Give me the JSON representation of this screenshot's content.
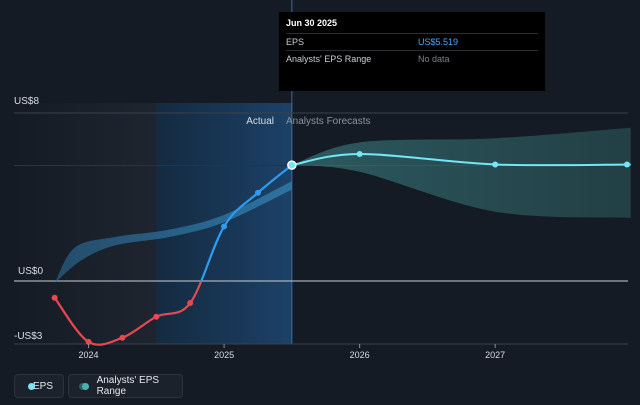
{
  "chart_data": {
    "type": "line",
    "y_axis": {
      "top_label": "US$8",
      "zero_label": "US$0",
      "bottom_label": "-US$3",
      "ylim": [
        -3,
        8
      ]
    },
    "x_ticks": [
      "2024",
      "2025",
      "2026",
      "2027"
    ],
    "xlim": [
      2023.45,
      2027.98
    ],
    "sections": {
      "actual_label": "Actual",
      "forecast_label": "Analysts Forecasts",
      "highlight_start": 2024.5,
      "divider": 2025.5
    },
    "series": [
      {
        "name": "EPS",
        "kind": "actual",
        "points": [
          {
            "x": 2023.75,
            "y": -0.8
          },
          {
            "x": 2024.0,
            "y": -2.9
          },
          {
            "x": 2024.25,
            "y": -2.7
          },
          {
            "x": 2024.5,
            "y": -1.7
          },
          {
            "x": 2024.75,
            "y": -1.05
          },
          {
            "x": 2025.0,
            "y": 2.6
          },
          {
            "x": 2025.25,
            "y": 4.2
          },
          {
            "x": 2025.5,
            "y": 5.519
          }
        ],
        "negative_color": "#e8484f",
        "positive_color": "#2e9bf0"
      },
      {
        "name": "EPS",
        "kind": "forecast",
        "points": [
          {
            "x": 2025.5,
            "y": 5.519
          },
          {
            "x": 2026.0,
            "y": 6.05
          },
          {
            "x": 2027.0,
            "y": 5.55
          },
          {
            "x": 2028.0,
            "y": 5.55
          }
        ],
        "color": "#74e6f5"
      }
    ],
    "range_past": {
      "upper": [
        [
          2023.75,
          -0.1
        ],
        [
          2023.9,
          1.6
        ],
        [
          2024.2,
          2.1
        ],
        [
          2024.6,
          2.45
        ],
        [
          2025.0,
          3.15
        ],
        [
          2025.5,
          4.75
        ]
      ],
      "lower": [
        [
          2025.5,
          4.35
        ],
        [
          2025.0,
          2.8
        ],
        [
          2024.6,
          2.1
        ],
        [
          2024.2,
          1.7
        ],
        [
          2023.95,
          1.0
        ],
        [
          2023.75,
          -0.1
        ]
      ]
    },
    "range_forecast": {
      "upper": [
        [
          2025.5,
          5.519
        ],
        [
          2026.0,
          6.6
        ],
        [
          2027.0,
          6.8
        ],
        [
          2028.0,
          7.3
        ]
      ],
      "lower": [
        [
          2028.0,
          3.0
        ],
        [
          2027.0,
          3.3
        ],
        [
          2026.0,
          5.2
        ],
        [
          2025.5,
          5.519
        ]
      ]
    },
    "colors": {
      "eps_marker": "#74e6f5",
      "range_fill": "#3a8fa0",
      "highlight": "#1b3a57"
    }
  },
  "tooltip": {
    "date": "Jun 30 2025",
    "eps_label": "EPS",
    "eps_value": "US$5.519",
    "range_label": "Analysts' EPS Range",
    "range_value": "No data"
  },
  "legend": {
    "eps": "EPS",
    "range": "Analysts' EPS Range"
  }
}
